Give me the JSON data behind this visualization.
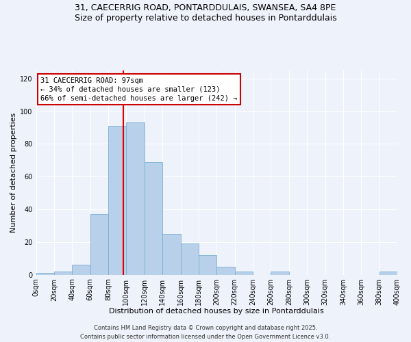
{
  "title_line1": "31, CAECERRIG ROAD, PONTARDDULAIS, SWANSEA, SA4 8PE",
  "title_line2": "Size of property relative to detached houses in Pontarddulais",
  "xlabel": "Distribution of detached houses by size in Pontarddulais",
  "ylabel": "Number of detached properties",
  "bar_edges": [
    0,
    20,
    40,
    60,
    80,
    100,
    120,
    140,
    160,
    180,
    200,
    220,
    240,
    260,
    280,
    300,
    320,
    340,
    360,
    380,
    400
  ],
  "bar_heights": [
    1,
    2,
    6,
    37,
    91,
    93,
    69,
    25,
    19,
    12,
    5,
    2,
    0,
    2,
    0,
    0,
    0,
    0,
    0,
    2
  ],
  "bar_color": "#b8d0ea",
  "bar_edge_color": "#7aafd4",
  "red_line_x": 97,
  "ylim": [
    0,
    125
  ],
  "xlim": [
    0,
    400
  ],
  "annotation_title": "31 CAECERRIG ROAD: 97sqm",
  "annotation_line2": "← 34% of detached houses are smaller (123)",
  "annotation_line3": "66% of semi-detached houses are larger (242) →",
  "annotation_box_color": "#ffffff",
  "annotation_box_edge": "#cc0000",
  "footer_line1": "Contains HM Land Registry data © Crown copyright and database right 2025.",
  "footer_line2": "Contains public sector information licensed under the Open Government Licence v3.0.",
  "background_color": "#eef2fb",
  "tick_labels": [
    "0sqm",
    "20sqm",
    "40sqm",
    "60sqm",
    "80sqm",
    "100sqm",
    "120sqm",
    "140sqm",
    "160sqm",
    "180sqm",
    "200sqm",
    "220sqm",
    "240sqm",
    "260sqm",
    "280sqm",
    "300sqm",
    "320sqm",
    "340sqm",
    "360sqm",
    "380sqm",
    "400sqm"
  ],
  "yticks": [
    0,
    20,
    40,
    60,
    80,
    100,
    120
  ],
  "grid_color": "#ffffff",
  "title_fontsize": 9,
  "axis_label_fontsize": 8,
  "tick_fontsize": 7,
  "annotation_fontsize": 7.5,
  "footer_fontsize": 6
}
